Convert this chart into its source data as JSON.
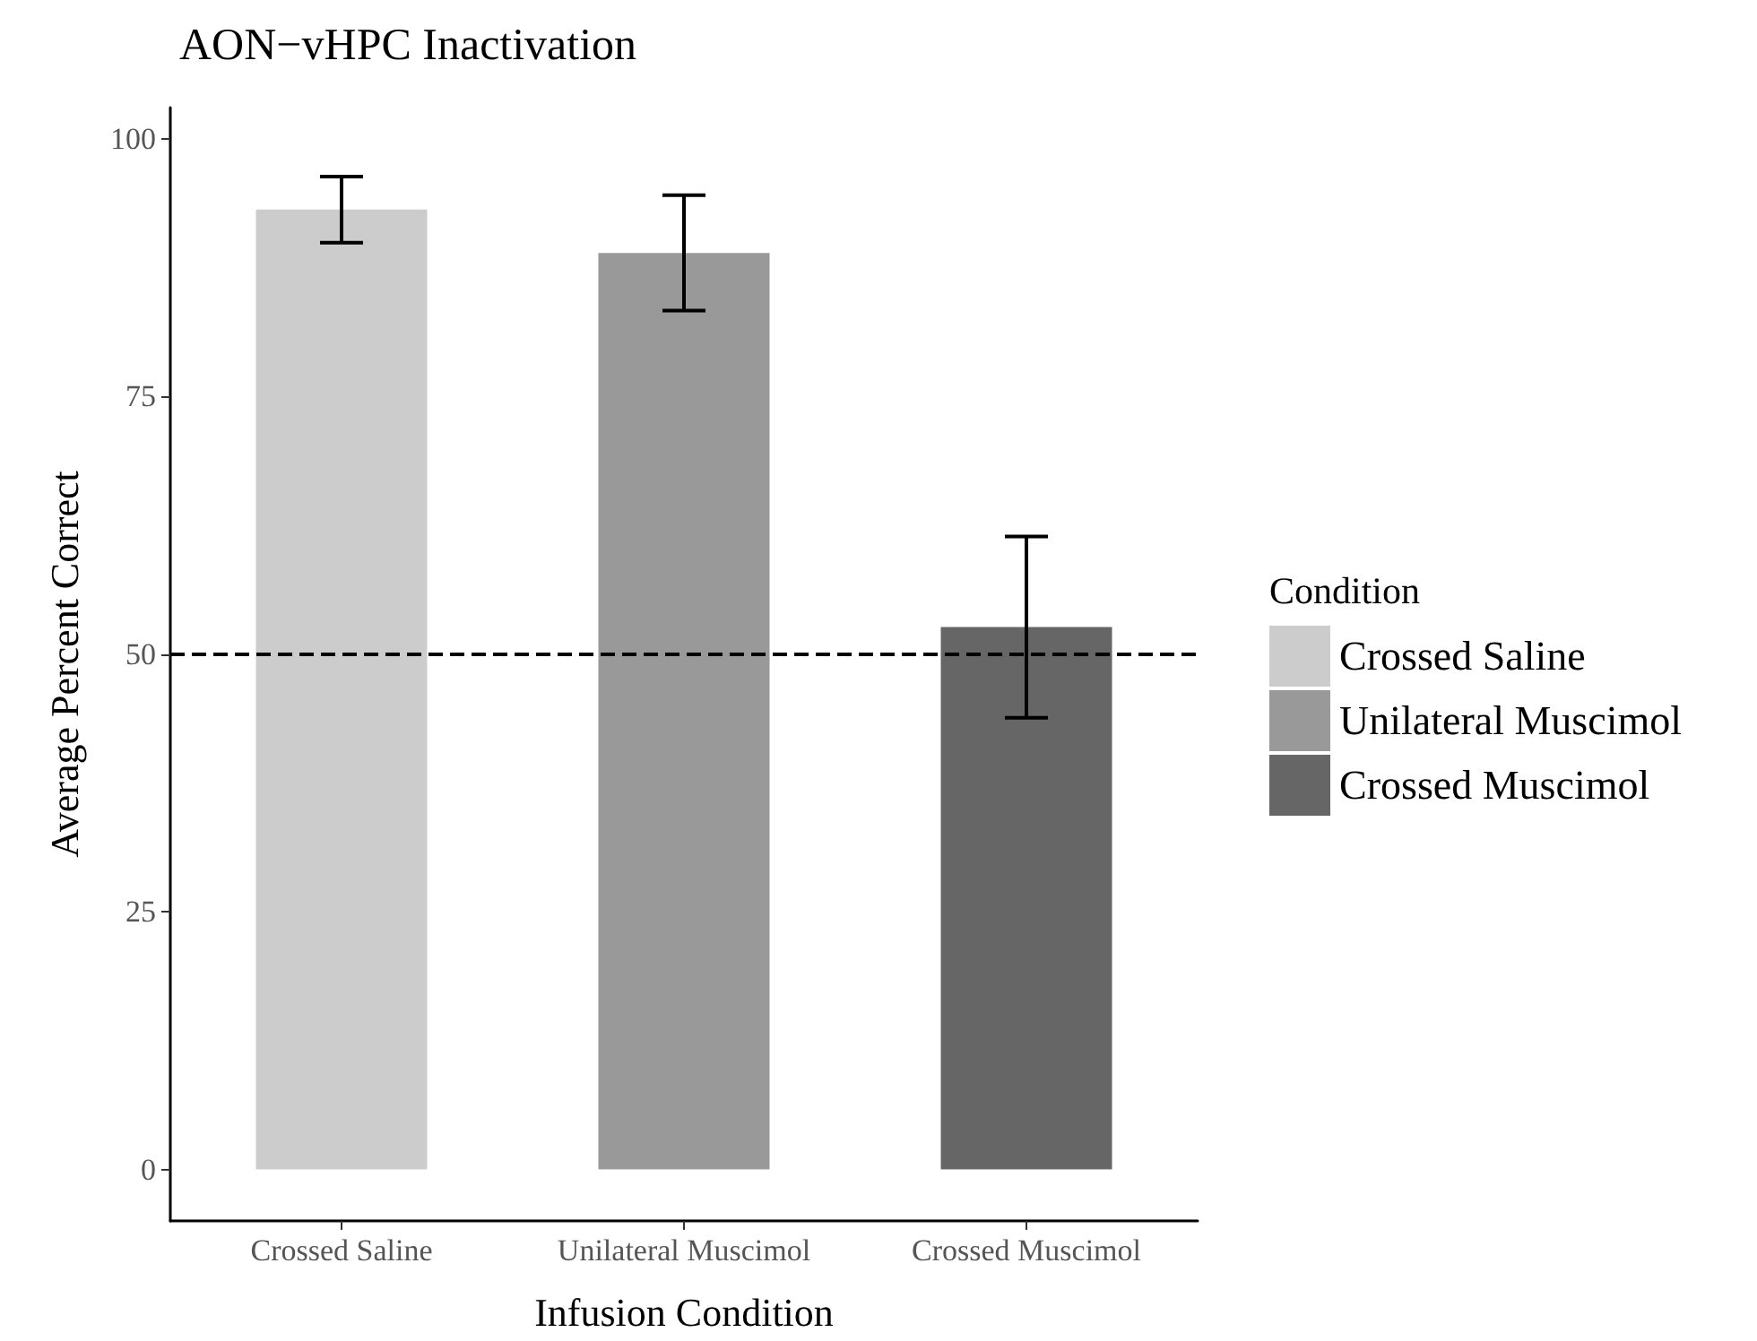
{
  "chart_data": {
    "type": "bar",
    "title": "AON−vHPC Inactivation",
    "xlabel": "Infusion Condition",
    "ylabel": "Average Percent Correct",
    "legend_title": "Condition",
    "categories": [
      "Crossed Saline",
      "Unilateral Muscimol",
      "Crossed Muscimol"
    ],
    "series": [
      {
        "name": "Crossed Saline",
        "color": "#cccccc",
        "values": [
          93.1,
          null,
          null
        ],
        "errors": [
          3.2,
          null,
          null
        ]
      },
      {
        "name": "Unilateral Muscimol",
        "color": "#999999",
        "values": [
          null,
          88.9,
          null
        ],
        "errors": [
          null,
          5.6,
          null
        ]
      },
      {
        "name": "Crossed Muscimol",
        "color": "#666666",
        "values": [
          null,
          null,
          52.6
        ],
        "errors": [
          null,
          null,
          8.8
        ]
      }
    ],
    "ylim": [
      -5,
      103
    ],
    "yticks": [
      0,
      25,
      50,
      75,
      100
    ],
    "ref_lines": [
      {
        "axis": "y",
        "value": 50,
        "line_style": "dashed",
        "color": "#000000"
      }
    ],
    "grid": false,
    "legend": "right"
  }
}
